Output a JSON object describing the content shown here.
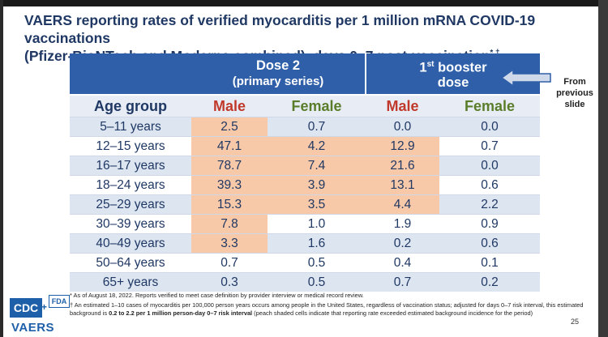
{
  "title": {
    "line1": "VAERS reporting rates of verified myocarditis per 1 million mRNA COVID-19 vaccinations",
    "line2": "(Pfizer-BioNTech and Moderna combined), days 0–7 post-vaccination",
    "marks": "*,†"
  },
  "table": {
    "dose2_title": "Dose 2",
    "dose2_sub": "(primary series)",
    "booster_prefix": "1",
    "booster_sup": "st",
    "booster_rest": " booster",
    "booster_line2": "dose",
    "col_age": "Age group",
    "col_male": "Male",
    "col_female": "Female",
    "rows": [
      {
        "age": "5–11 years",
        "d2m": "2.5",
        "d2f": "0.7",
        "bm": "0.0",
        "bf": "0.0"
      },
      {
        "age": "12–15 years",
        "d2m": "47.1",
        "d2f": "4.2",
        "bm": "12.9",
        "bf": "0.7"
      },
      {
        "age": "16–17 years",
        "d2m": "78.7",
        "d2f": "7.4",
        "bm": "21.6",
        "bf": "0.0"
      },
      {
        "age": "18–24 years",
        "d2m": "39.3",
        "d2f": "3.9",
        "bm": "13.1",
        "bf": "0.6"
      },
      {
        "age": "25–29 years",
        "d2m": "15.3",
        "d2f": "3.5",
        "bm": "4.4",
        "bf": "2.2"
      },
      {
        "age": "30–39 years",
        "d2m": "7.8",
        "d2f": "1.0",
        "bm": "1.9",
        "bf": "0.9"
      },
      {
        "age": "40–49 years",
        "d2m": "3.3",
        "d2f": "1.6",
        "bm": "0.2",
        "bf": "0.6"
      },
      {
        "age": "50–64 years",
        "d2m": "0.7",
        "d2f": "0.5",
        "bm": "0.4",
        "bf": "0.1"
      },
      {
        "age": "65+ years",
        "d2m": "0.3",
        "d2f": "0.5",
        "bm": "0.7",
        "bf": "0.2"
      }
    ]
  },
  "note": {
    "line1": "From",
    "line2": "previous",
    "line3": "slide"
  },
  "footnotes": {
    "f1": "* As of August 18, 2022. Reports verified to meet case definition by provider interview or medical record review.",
    "f2a": "† An estimated 1–10 cases of myocarditis per 100,000 person years occurs among people in the United States, regardless of vaccination status; adjusted for days 0–7 risk interval, this estimated background is ",
    "f2b": "0.2 to 2.2 per 1 million person-day 0–7 risk interval",
    "f2c": " (peach shaded cells indicate that reporting rate exceeded estimated background incidence for the period)"
  },
  "logos": {
    "cdc": "CDC",
    "plus": "+",
    "fda": "FDA",
    "vaers": "VAERS"
  },
  "page_number": "25",
  "colors": {
    "header_blue": "#2e5fa8",
    "peach": "#f8c9a8",
    "male_red": "#c0392b",
    "female_green": "#5a7d2a"
  }
}
